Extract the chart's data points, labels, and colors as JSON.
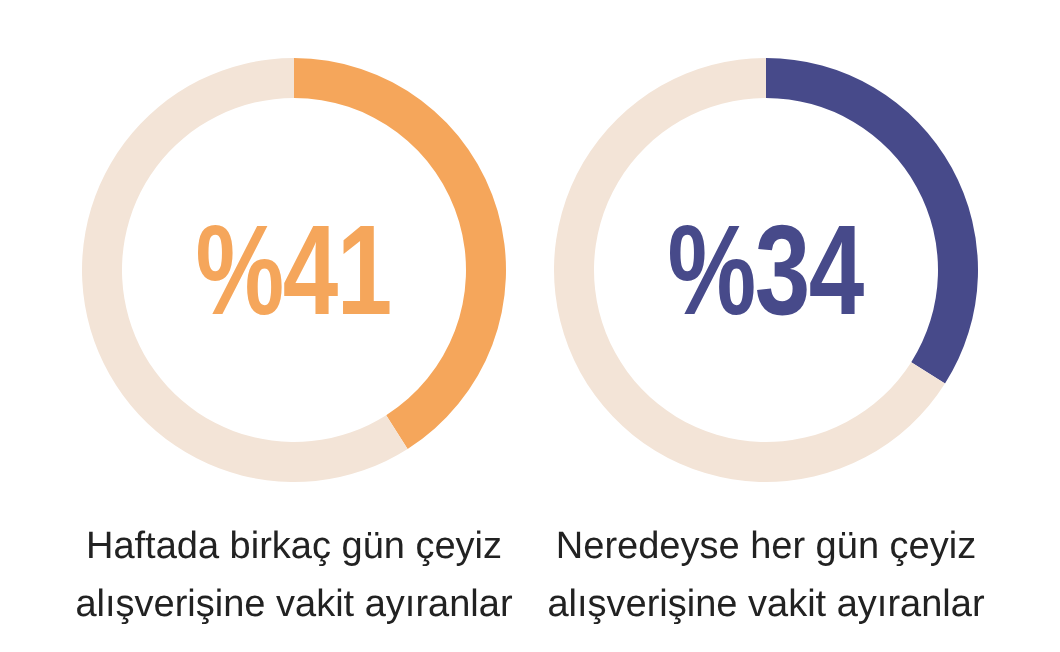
{
  "chart_data": [
    {
      "type": "donut",
      "xlabel": "Haftada birkaç gün çeyiz alışverişine vakit ayıranlar",
      "categories": [
        null,
        null
      ],
      "values": [
        41,
        59
      ],
      "colors": [
        "#f5a65b",
        "#f3e4d7"
      ],
      "value_labels": [
        "%41",
        null
      ]
    },
    {
      "type": "donut",
      "xlabel": "Neredeyse her gün çeyiz alışverişine vakit ayıranlar",
      "categories": [
        null,
        null
      ],
      "values": [
        34,
        66
      ],
      "colors": [
        "#474a8a",
        "#f3e4d7"
      ],
      "value_labels": [
        "%34",
        null
      ]
    }
  ]
}
